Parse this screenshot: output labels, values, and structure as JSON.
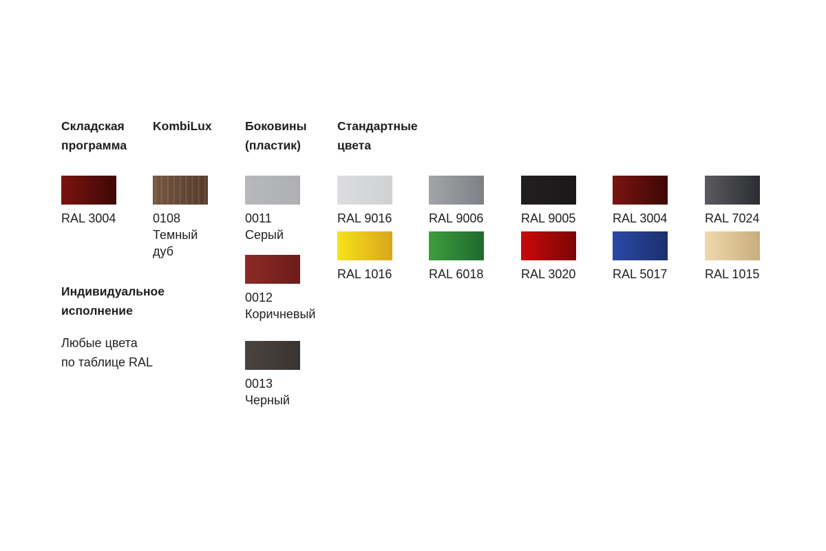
{
  "headings": {
    "stock": "Складская\nпрограмма",
    "kombilux": "KombiLux",
    "sides": "Боковины\n(пластик)",
    "standard": "Стандартные\nцвета",
    "individual": "Индивидуальное\nисполнение",
    "individual_text": "Любые цвета\nпо таблице RAL"
  },
  "stock": {
    "label": "RAL 3004",
    "color": [
      "#7a1410",
      "#3e0705"
    ]
  },
  "kombilux": {
    "label": "0108\nТемный\nдуб",
    "color": [
      "#7a5a45",
      "#5a3f2e"
    ]
  },
  "sides": [
    {
      "label": "0011\nСерый",
      "color": [
        "#b6b8bb",
        "#aeb0b3"
      ]
    },
    {
      "label": "0012\nКоричневый",
      "color": [
        "#8c2a26",
        "#6e1c1a"
      ]
    },
    {
      "label": "0013\nЧерный",
      "color": [
        "#4a4440",
        "#3a3430"
      ]
    }
  ],
  "standard": [
    {
      "label": "RAL 9016",
      "color": [
        "#dcdddf",
        "#cfd1d3"
      ]
    },
    {
      "label": "RAL 9006",
      "color": [
        "#a3a5a9",
        "#7d8084"
      ]
    },
    {
      "label": "RAL 9005",
      "color": [
        "#231f20",
        "#1a1718"
      ]
    },
    {
      "label": "RAL 3004",
      "color": [
        "#7a1410",
        "#3e0705"
      ]
    },
    {
      "label": "RAL 7024",
      "color": [
        "#5a5b60",
        "#2c2d31"
      ]
    },
    {
      "label": "RAL 1016",
      "color": [
        "#f7e21c",
        "#d9a51c"
      ]
    },
    {
      "label": "RAL 6018",
      "color": [
        "#3c9e3e",
        "#1e6a2c"
      ]
    },
    {
      "label": "RAL 3020",
      "color": [
        "#c80a0a",
        "#7c0505"
      ]
    },
    {
      "label": "RAL 5017",
      "color": [
        "#2a4aa6",
        "#1c2f6e"
      ]
    },
    {
      "label": "RAL 1015",
      "color": [
        "#efd9ad",
        "#c9ad7d"
      ]
    }
  ]
}
